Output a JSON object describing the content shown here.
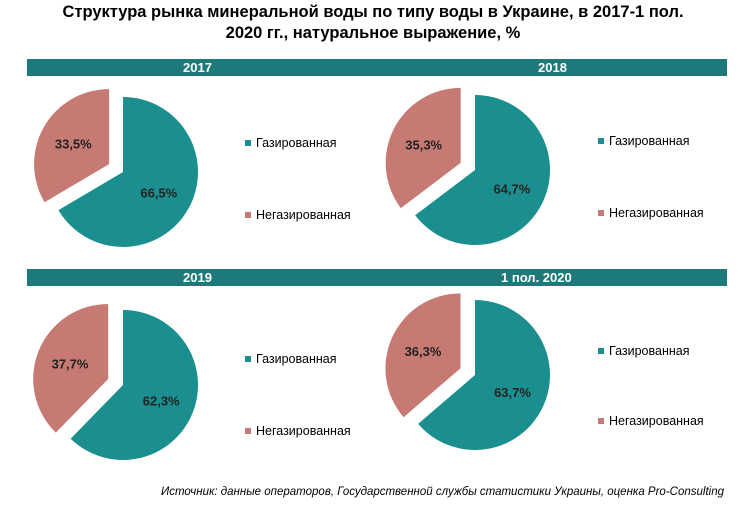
{
  "title_line1": "Структура рынка минеральной воды по типу воды в Украине, в 2017-1 пол.",
  "title_line2": "2020 гг., натуральное выражение, %",
  "colors": {
    "carbonated": "#1b8f8f",
    "still": "#c77a73",
    "header_bar": "#1e7a7a"
  },
  "legend": {
    "carbonated": "Газированная",
    "still": "Негазированная"
  },
  "source": "Источник: данные операторов, Государственной службы статистики Украины, оценка Pro-Consulting",
  "chart_data": [
    {
      "type": "pie",
      "title": "2017",
      "categories": [
        "Газированная",
        "Негазированная"
      ],
      "values": [
        66.5,
        33.5
      ],
      "labels": [
        "66,5%",
        "33,5%"
      ]
    },
    {
      "type": "pie",
      "title": "2018",
      "categories": [
        "Газированная",
        "Негазированная"
      ],
      "values": [
        64.7,
        35.3
      ],
      "labels": [
        "64,7%",
        "35,3%"
      ]
    },
    {
      "type": "pie",
      "title": "2019",
      "categories": [
        "Газированная",
        "Негазированная"
      ],
      "values": [
        62.3,
        37.7
      ],
      "labels": [
        "62,3%",
        "37,7%"
      ]
    },
    {
      "type": "pie",
      "title": "1 пол. 2020",
      "categories": [
        "Газированная",
        "Негазированная"
      ],
      "values": [
        63.7,
        36.3
      ],
      "labels": [
        "63,7%",
        "36,3%"
      ]
    }
  ]
}
